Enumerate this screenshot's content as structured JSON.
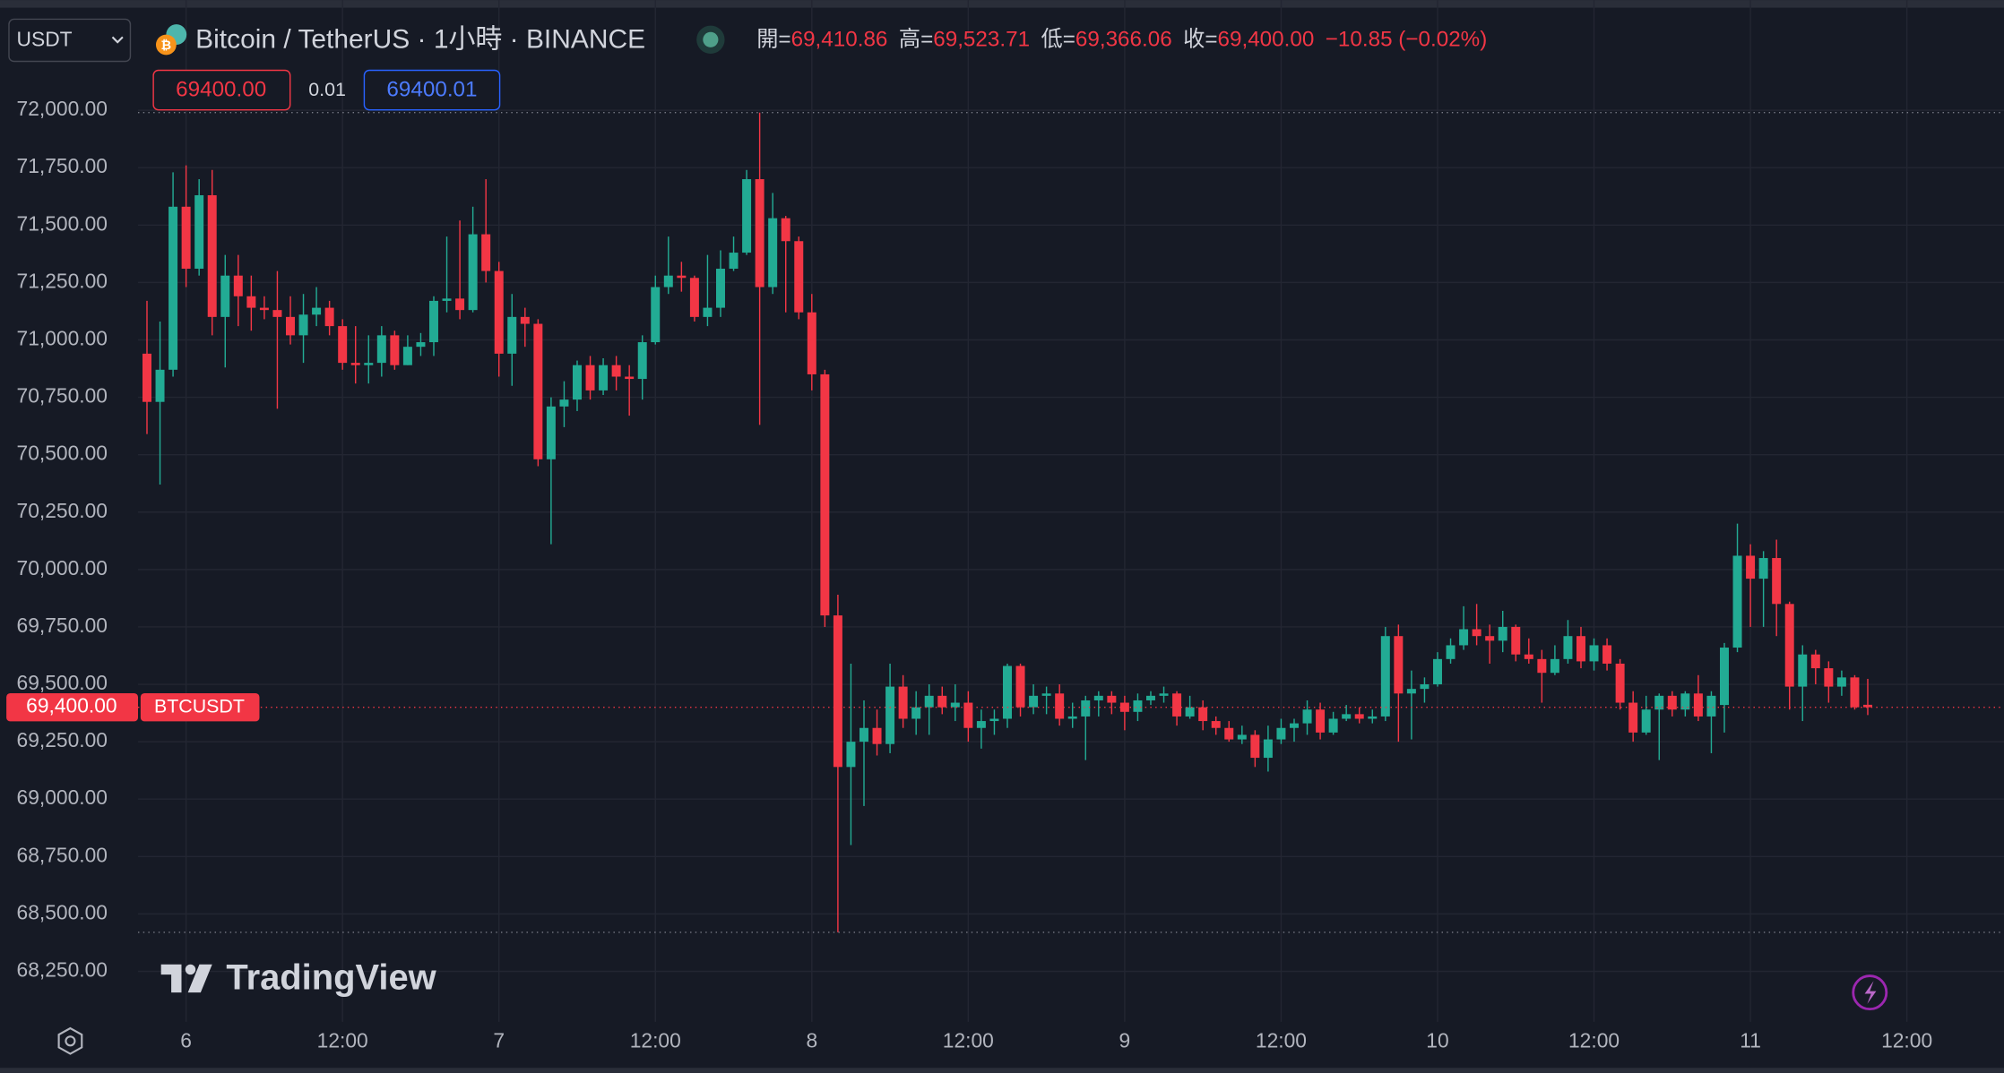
{
  "header": {
    "symbol_select": "USDT",
    "title": "Bitcoin / TetherUS · 1小時 · BINANCE",
    "ohlc": [
      {
        "label": "開=",
        "value": "69,410.86"
      },
      {
        "label": "高=",
        "value": "69,523.71"
      },
      {
        "label": "低=",
        "value": "69,366.06"
      },
      {
        "label": "收=",
        "value": "69,400.00"
      }
    ],
    "change": "−10.85 (−0.02%)"
  },
  "order_panel": {
    "sell": "69400.00",
    "spread": "0.01",
    "buy": "69400.01"
  },
  "price_tag": {
    "price": "69,400.00",
    "symbol": "BTCUSDT"
  },
  "brand": "TradingView",
  "chart_data": {
    "type": "candlestick",
    "up_color": "#22ab94",
    "down_color": "#f23645",
    "grid": true,
    "ylim": [
      68030,
      72480
    ],
    "yticks": [
      {
        "value": 68250,
        "label": "68,250.00"
      },
      {
        "value": 68500,
        "label": "68,500.00"
      },
      {
        "value": 68750,
        "label": "68,750.00"
      },
      {
        "value": 69000,
        "label": "69,000.00"
      },
      {
        "value": 69250,
        "label": "69,250.00"
      },
      {
        "value": 69500,
        "label": "69,500.00"
      },
      {
        "value": 69750,
        "label": "69,750.00"
      },
      {
        "value": 70000,
        "label": "70,000.00"
      },
      {
        "value": 70250,
        "label": "70,250.00"
      },
      {
        "value": 70500,
        "label": "70,500.00"
      },
      {
        "value": 70750,
        "label": "70,750.00"
      },
      {
        "value": 71000,
        "label": "71,000.00"
      },
      {
        "value": 71250,
        "label": "71,250.00"
      },
      {
        "value": 71500,
        "label": "71,500.00"
      },
      {
        "value": 71750,
        "label": "71,750.00"
      },
      {
        "value": 72000,
        "label": "72,000.00"
      }
    ],
    "categories": [
      null,
      null,
      null,
      "6",
      null,
      null,
      null,
      null,
      null,
      null,
      null,
      null,
      null,
      null,
      null,
      "12:00",
      null,
      null,
      null,
      null,
      null,
      null,
      null,
      null,
      null,
      null,
      null,
      "7",
      null,
      null,
      null,
      null,
      null,
      null,
      null,
      null,
      null,
      null,
      null,
      "12:00",
      null,
      null,
      null,
      null,
      null,
      null,
      null,
      null,
      null,
      null,
      null,
      "8",
      null,
      null,
      null,
      null,
      null,
      null,
      null,
      null,
      null,
      null,
      null,
      "12:00",
      null,
      null,
      null,
      null,
      null,
      null,
      null,
      null,
      null,
      null,
      null,
      "9",
      null,
      null,
      null,
      null,
      null,
      null,
      null,
      null,
      null,
      null,
      null,
      "12:00",
      null,
      null,
      null,
      null,
      null,
      null,
      null,
      null,
      null,
      null,
      null,
      "10",
      null,
      null,
      null,
      null,
      null,
      null,
      null,
      null,
      null,
      null,
      null,
      "12:00",
      null,
      null,
      null,
      null,
      null,
      null,
      null,
      null,
      null,
      null,
      null,
      "11",
      null,
      null,
      null,
      null,
      null,
      null,
      null,
      null,
      null,
      null,
      null,
      "12:00"
    ],
    "open": [
      70940,
      70730,
      70870,
      71580,
      71310,
      71630,
      71100,
      71280,
      71190,
      71140,
      71130,
      71100,
      71020,
      71110,
      71140,
      71060,
      70900,
      70890,
      70900,
      71020,
      70890,
      70970,
      70990,
      71170,
      71180,
      71130,
      71460,
      71300,
      70940,
      71100,
      71070,
      70480,
      70710,
      70740,
      70890,
      70780,
      70890,
      70840,
      70830,
      70990,
      71230,
      71280,
      71270,
      71100,
      71140,
      71310,
      71380,
      71700,
      71230,
      71530,
      71430,
      71120,
      70850,
      69800,
      69140,
      69250,
      69310,
      69240,
      69490,
      69350,
      69400,
      69450,
      69400,
      69420,
      69310,
      69340,
      69350,
      69580,
      69400,
      69450,
      69460,
      69350,
      69360,
      69430,
      69450,
      69420,
      69380,
      69430,
      69450,
      69460,
      69360,
      69400,
      69340,
      69310,
      69260,
      69280,
      69180,
      69260,
      69310,
      69330,
      69390,
      69290,
      69350,
      69370,
      69350,
      69360,
      69710,
      69460,
      69480,
      69500,
      69610,
      69670,
      69740,
      69710,
      69690,
      69750,
      69630,
      69610,
      69550,
      69610,
      69710,
      69600,
      69670,
      69590,
      69420,
      69290,
      69390,
      69450,
      69390,
      69460,
      69360,
      69410,
      69660,
      70060,
      69960,
      70050,
      69850,
      69490,
      69630,
      69570,
      69490,
      69530,
      69410.86,
      null,
      null,
      null
    ],
    "high": [
      71170,
      71080,
      71730,
      71760,
      71700,
      71740,
      71370,
      71370,
      71280,
      71190,
      71300,
      71190,
      71200,
      71230,
      71170,
      71090,
      71060,
      71020,
      71060,
      71040,
      71020,
      71030,
      71190,
      71450,
      71520,
      71580,
      71700,
      71340,
      71200,
      71140,
      71090,
      70750,
      70820,
      70910,
      70930,
      70920,
      70930,
      70890,
      71020,
      71280,
      71450,
      71340,
      71280,
      71370,
      71390,
      71450,
      71740,
      71990,
      71640,
      71540,
      71450,
      71200,
      70870,
      69890,
      69590,
      69430,
      69390,
      69590,
      69540,
      69470,
      69500,
      69490,
      69500,
      69470,
      69390,
      69390,
      69590,
      69590,
      69500,
      69490,
      69500,
      69420,
      69450,
      69470,
      69470,
      69450,
      69460,
      69470,
      69490,
      69470,
      69450,
      69430,
      69360,
      69340,
      69320,
      69300,
      69320,
      69350,
      69350,
      69430,
      69420,
      69380,
      69410,
      69400,
      69390,
      69750,
      69760,
      69560,
      69530,
      69640,
      69700,
      69840,
      69850,
      69760,
      69820,
      69760,
      69700,
      69650,
      69670,
      69780,
      69750,
      69700,
      69700,
      69610,
      69470,
      69450,
      69460,
      69470,
      69470,
      69540,
      69470,
      69680,
      70200,
      70110,
      70080,
      70130,
      69860,
      69670,
      69650,
      69600,
      69560,
      69540,
      69523.71,
      null,
      null,
      null
    ],
    "low": [
      70590,
      70370,
      70840,
      71230,
      71280,
      71020,
      70880,
      71060,
      71040,
      71090,
      70700,
      70980,
      70900,
      71060,
      71020,
      70870,
      70810,
      70810,
      70840,
      70870,
      70890,
      70930,
      70930,
      71120,
      71090,
      71120,
      71250,
      70840,
      70800,
      70970,
      70450,
      70110,
      70620,
      70690,
      70740,
      70760,
      70780,
      70670,
      70740,
      70980,
      71200,
      71210,
      71080,
      71060,
      71100,
      71300,
      71370,
      70630,
      71200,
      71120,
      71090,
      70780,
      69750,
      68420,
      68800,
      68970,
      69190,
      69200,
      69310,
      69280,
      69280,
      69370,
      69340,
      69250,
      69220,
      69280,
      69310,
      69360,
      69370,
      69370,
      69320,
      69310,
      69170,
      69360,
      69370,
      69300,
      69340,
      69410,
      69420,
      69320,
      69350,
      69300,
      69280,
      69250,
      69240,
      69140,
      69120,
      69240,
      69250,
      69280,
      69260,
      69280,
      69340,
      69330,
      69330,
      69340,
      69250,
      69260,
      69420,
      69490,
      69590,
      69650,
      69670,
      69590,
      69640,
      69600,
      69590,
      69420,
      69540,
      69590,
      69570,
      69560,
      69560,
      69390,
      69250,
      69280,
      69170,
      69360,
      69360,
      69340,
      69200,
      69290,
      69640,
      69750,
      69750,
      69710,
      69390,
      69340,
      69500,
      69420,
      69450,
      69390,
      69366.06,
      null,
      null,
      null
    ],
    "close": [
      70730,
      70870,
      71580,
      71310,
      71630,
      71100,
      71280,
      71190,
      71140,
      71130,
      71100,
      71020,
      71110,
      71140,
      71060,
      70900,
      70890,
      70900,
      71020,
      70890,
      70970,
      70990,
      71170,
      71180,
      71130,
      71460,
      71300,
      70940,
      71100,
      71070,
      70480,
      70710,
      70740,
      70890,
      70780,
      70890,
      70840,
      70830,
      70990,
      71230,
      71280,
      71270,
      71100,
      71140,
      71310,
      71380,
      71700,
      71230,
      71530,
      71430,
      71120,
      70850,
      69800,
      69140,
      69250,
      69310,
      69240,
      69490,
      69350,
      69400,
      69450,
      69400,
      69420,
      69310,
      69340,
      69350,
      69580,
      69400,
      69450,
      69460,
      69350,
      69360,
      69430,
      69450,
      69420,
      69380,
      69430,
      69450,
      69460,
      69360,
      69400,
      69340,
      69310,
      69260,
      69280,
      69180,
      69260,
      69310,
      69330,
      69390,
      69290,
      69350,
      69370,
      69350,
      69360,
      69710,
      69460,
      69480,
      69500,
      69610,
      69670,
      69740,
      69710,
      69690,
      69750,
      69630,
      69610,
      69550,
      69610,
      69710,
      69600,
      69670,
      69590,
      69420,
      69290,
      69390,
      69450,
      69390,
      69460,
      69360,
      69450,
      69660,
      70060,
      69960,
      70050,
      69850,
      69490,
      69630,
      69570,
      69490,
      69530,
      69400,
      69400,
      null,
      null,
      null
    ]
  }
}
